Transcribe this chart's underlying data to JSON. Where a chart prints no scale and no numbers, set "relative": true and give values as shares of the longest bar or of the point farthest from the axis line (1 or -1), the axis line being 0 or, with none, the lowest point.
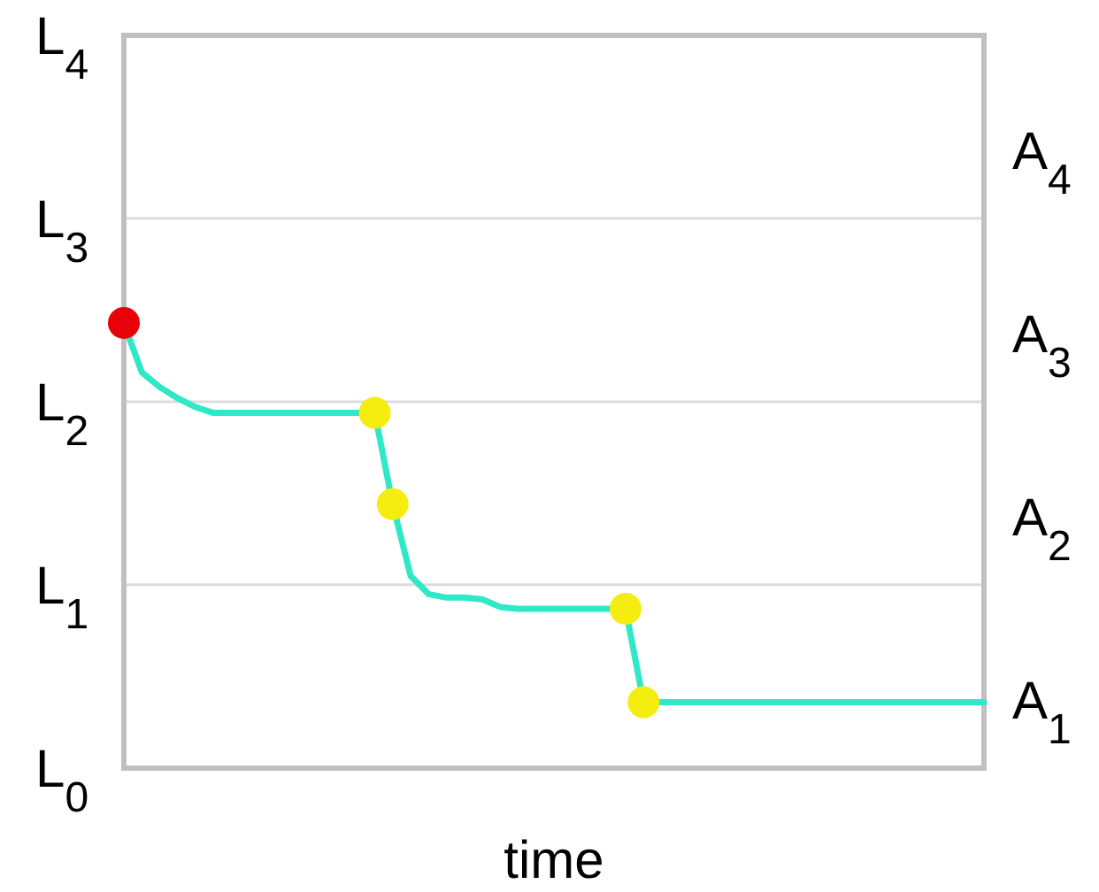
{
  "chart_data": {
    "type": "line",
    "xlabel": "time",
    "relative": true,
    "annotations": [
      "L$_{4}$",
      "L$_{3}$",
      "L$_{2}$",
      "L$_{1}$",
      "L$_{0}$",
      "A$_{4}$",
      "A$_{3}$",
      "A$_{2}$",
      "A$_{1}$"
    ],
    "categories": [
      null,
      null,
      null,
      null,
      null,
      null,
      null,
      null,
      null,
      null,
      null,
      null,
      null,
      null,
      null,
      null,
      null,
      null,
      null,
      null,
      null,
      null,
      null,
      null,
      null,
      null,
      null,
      null,
      null,
      null,
      null,
      null,
      null,
      null,
      null,
      null,
      null,
      null,
      null,
      null,
      null,
      null,
      null,
      null,
      null,
      null,
      null,
      null,
      null
    ],
    "ref_lines": [
      {
        "axis": "y",
        "value": 1.235,
        "color": "#dcdcdc"
      },
      {
        "axis": "y",
        "value": 0.823,
        "color": "#dcdcdc"
      },
      {
        "axis": "y",
        "value": 0.412,
        "color": "#dcdcdc"
      }
    ],
    "series": [
      {
        "color": "#2ee8c8",
        "line_style": "solid",
        "values": [
          1,
          0.889,
          0.856,
          0.831,
          0.811,
          0.798,
          0.798,
          0.798,
          0.798,
          0.798,
          0.798,
          0.798,
          0.798,
          0.798,
          0.798,
          0.593,
          0.432,
          0.391,
          0.383,
          0.383,
          0.379,
          0.362,
          0.358,
          0.358,
          0.358,
          0.358,
          0.358,
          0.358,
          0.358,
          0.148,
          0.148,
          0.148,
          0.148,
          0.148,
          0.148,
          0.148,
          0.148,
          0.148,
          0.148,
          0.148,
          0.148,
          0.148,
          0.148,
          0.148,
          0.148,
          0.148,
          0.148,
          0.148,
          0.148
        ],
        "colors": [
          "#e8000b",
          null,
          null,
          null,
          null,
          null,
          null,
          null,
          null,
          null,
          null,
          null,
          null,
          null,
          "#f5ec10",
          "#f5ec10",
          null,
          null,
          null,
          null,
          null,
          null,
          null,
          null,
          null,
          null,
          null,
          null,
          "#f5ec10",
          "#f5ec10",
          null,
          null,
          null,
          null,
          null,
          null,
          null,
          null,
          null,
          null,
          null,
          null,
          null,
          null,
          null,
          null,
          null,
          null,
          null
        ]
      }
    ]
  }
}
